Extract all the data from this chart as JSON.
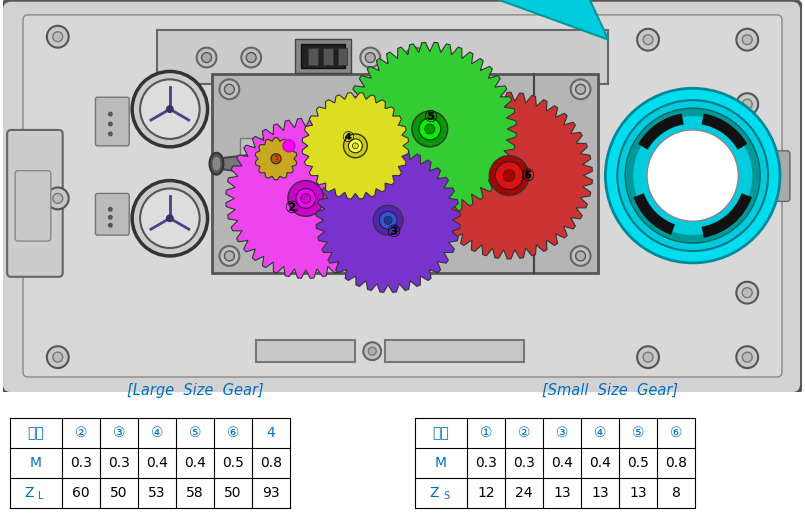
{
  "fig_bg": "#ffffff",
  "housing_bg": "#d0d0d0",
  "housing_edge": "#888888",
  "panel_bg": "#c0c0c0",
  "inner_panel_bg": "#b8b8b8",
  "gear_panel_bg": "#b0b0b0",
  "gear2_color": "#ee44ee",
  "gear2_hub": "#dd00dd",
  "gear3_color": "#8833cc",
  "gear3_hub": "#4444cc",
  "gear4_color": "#dddd22",
  "gear4_hub": "#bbbb00",
  "gear5_color": "#44cc44",
  "gear5_hub": "#009900",
  "gear6_color": "#cc3333",
  "gear6_hub": "#aa0000",
  "gear1_color": "#c8a000",
  "sector_color": "#00ccdd",
  "sector_edge": "#00aaaa",
  "drum_outer": "#00ddee",
  "drum_mid": "#00bbcc",
  "drum_inner": "#ffffff",
  "text_blue": "#0070c0",
  "large_title": "[Large  Size  Gear]",
  "small_title": "[Small  Size  Gear]",
  "large_headers": [
    "품번",
    "②",
    "③",
    "④",
    "⑤",
    "⑥",
    "4"
  ],
  "large_row1": [
    "M",
    "0.3",
    "0.3",
    "0.4",
    "0.4",
    "0.5",
    "0.8"
  ],
  "large_row2": [
    "ZL",
    "60",
    "50",
    "53",
    "58",
    "50",
    "93"
  ],
  "small_headers": [
    "품번",
    "①",
    "②",
    "③",
    "④",
    "⑤",
    "⑥"
  ],
  "small_row1": [
    "M",
    "0.3",
    "0.3",
    "0.4",
    "0.4",
    "0.5",
    "0.8"
  ],
  "small_row2": [
    "ZS",
    "12",
    "24",
    "13",
    "13",
    "13",
    "8"
  ]
}
